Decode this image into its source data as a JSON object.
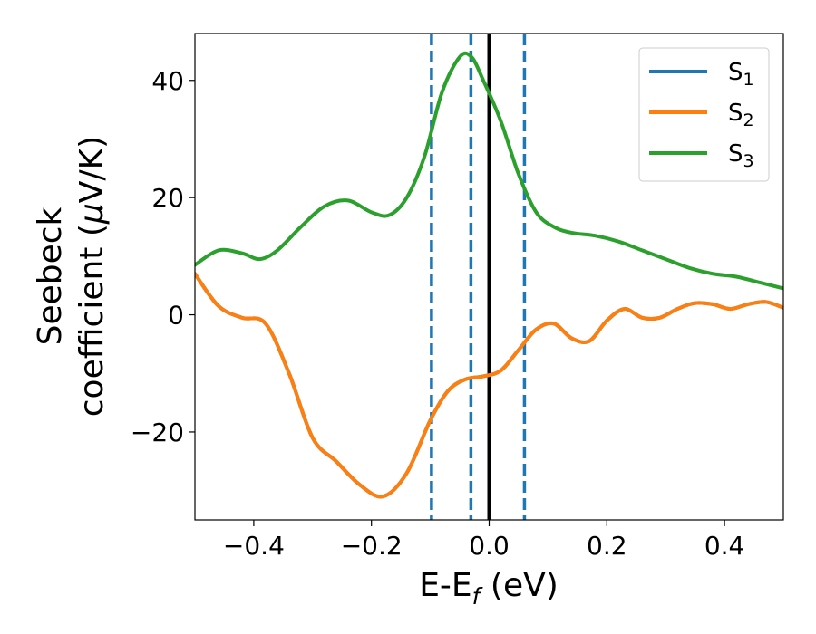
{
  "chart_data": {
    "type": "line",
    "xlabel": "E-E_f (eV)",
    "xlabel_main": "E-E",
    "xlabel_sub": "f",
    "xlabel_tail": " (eV)",
    "ylabel": "Seebeck coefficient (μV/K)",
    "ylabel_line1": "Seebeck",
    "ylabel_line2_pre": "coefficient  (",
    "ylabel_line2_mu": "μ",
    "ylabel_line2_post": "V/K)",
    "xlim": [
      -0.5,
      0.5
    ],
    "ylim": [
      -35,
      48
    ],
    "xticks": [
      -0.4,
      -0.2,
      0.0,
      0.2,
      0.4
    ],
    "xtick_labels": [
      "−0.4",
      "−0.2",
      "0.0",
      "0.2",
      "0.4"
    ],
    "yticks": [
      -20,
      0,
      20,
      40
    ],
    "ytick_labels": [
      "−20",
      "0",
      "20",
      "40"
    ],
    "grid": false,
    "legend_position": "top-right",
    "legend": [
      {
        "label": "S",
        "sub": "1",
        "color": "#1f77b4"
      },
      {
        "label": "S",
        "sub": "2",
        "color": "#ff7f0e"
      },
      {
        "label": "S",
        "sub": "3",
        "color": "#2ca02c"
      }
    ],
    "vlines": [
      {
        "x": -0.098,
        "color": "#1f77b4",
        "style": "dashed"
      },
      {
        "x": -0.031,
        "color": "#1f77b4",
        "style": "dashed"
      },
      {
        "x": 0.06,
        "color": "#1f77b4",
        "style": "dashed"
      },
      {
        "x": 0.0,
        "color": "#000000",
        "style": "solid"
      }
    ],
    "series": [
      {
        "name": "S₁",
        "color": "#1f77b4",
        "x": [
          -0.5,
          -0.46,
          -0.42,
          -0.38,
          -0.34,
          -0.3,
          -0.26,
          -0.22,
          -0.18,
          -0.14,
          -0.1,
          -0.07,
          -0.04,
          -0.01,
          0.02,
          0.05,
          0.08,
          0.11,
          0.14,
          0.17,
          0.2,
          0.23,
          0.26,
          0.29,
          0.32,
          0.35,
          0.38,
          0.41,
          0.44,
          0.47,
          0.5
        ],
        "y": [
          7,
          1.5,
          -0.5,
          -1.5,
          -10,
          -21,
          -25,
          -29,
          -31,
          -27,
          -18,
          -13,
          -11,
          -10.5,
          -9.5,
          -6,
          -2.5,
          -1.5,
          -4,
          -4.5,
          -1,
          1,
          -0.5,
          -0.5,
          1,
          2,
          1.8,
          1,
          1.8,
          2.2,
          1.2
        ]
      },
      {
        "name": "S₂",
        "color": "#ff7f0e",
        "x": [
          -0.5,
          -0.46,
          -0.42,
          -0.38,
          -0.34,
          -0.3,
          -0.26,
          -0.22,
          -0.18,
          -0.14,
          -0.1,
          -0.07,
          -0.04,
          -0.01,
          0.02,
          0.05,
          0.08,
          0.11,
          0.14,
          0.17,
          0.2,
          0.23,
          0.26,
          0.29,
          0.32,
          0.35,
          0.38,
          0.41,
          0.44,
          0.47,
          0.5
        ],
        "y": [
          7,
          1.5,
          -0.5,
          -1.5,
          -10,
          -21,
          -25,
          -29,
          -31,
          -27,
          -18,
          -13,
          -11,
          -10.5,
          -9.5,
          -6,
          -2.5,
          -1.5,
          -4,
          -4.5,
          -1,
          1,
          -0.5,
          -0.5,
          1,
          2,
          1.8,
          1,
          1.8,
          2.2,
          1.2
        ]
      },
      {
        "name": "S₃",
        "color": "#2ca02c",
        "x": [
          -0.5,
          -0.46,
          -0.42,
          -0.39,
          -0.36,
          -0.32,
          -0.28,
          -0.24,
          -0.2,
          -0.17,
          -0.14,
          -0.11,
          -0.08,
          -0.05,
          -0.03,
          -0.01,
          0.02,
          0.05,
          0.08,
          0.11,
          0.14,
          0.18,
          0.22,
          0.26,
          0.3,
          0.34,
          0.38,
          0.42,
          0.46,
          0.5
        ],
        "y": [
          8.5,
          11,
          10.5,
          9.5,
          11,
          15,
          18.5,
          19.5,
          17.5,
          17,
          20,
          27,
          38,
          44,
          44,
          40,
          33,
          24,
          17.5,
          15,
          14,
          13.5,
          12.5,
          11,
          9.5,
          8,
          7,
          6.5,
          5.5,
          4.5
        ]
      }
    ]
  }
}
